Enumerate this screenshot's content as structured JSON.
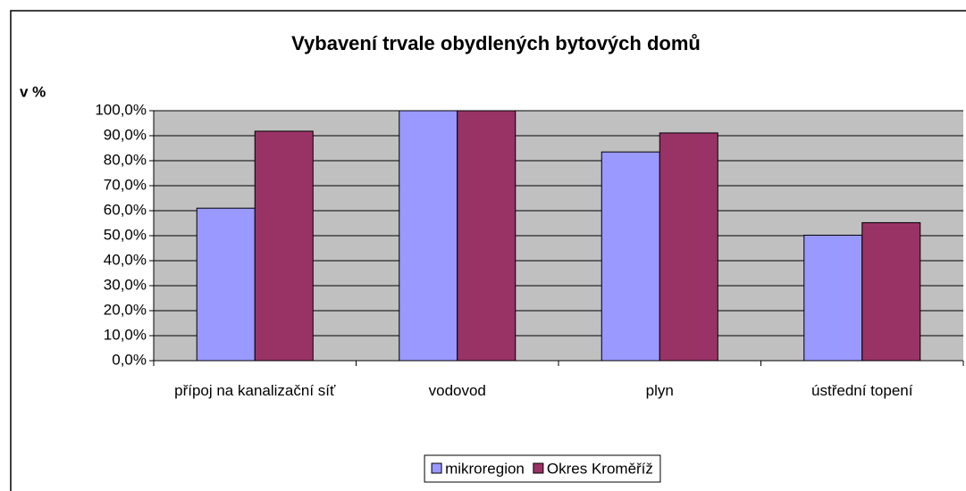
{
  "chart_data": {
    "type": "bar",
    "title": "Vybavení trvale obydlených bytových domů",
    "y_label": "v %",
    "categories": [
      "přípoj na kanalizační síť",
      "vodovod",
      "plyn",
      "ústřední topení"
    ],
    "series": [
      {
        "name": "mikroregion",
        "color": "#9999ff",
        "values": [
          61.0,
          100,
          83.5,
          50.2
        ]
      },
      {
        "name": "Okres Kroměříž",
        "color": "#993366",
        "values": [
          91.8,
          100,
          91.1,
          55.2
        ]
      }
    ],
    "ylim": [
      0,
      100
    ],
    "yticks": [
      {
        "value": 0,
        "label": "0,0%"
      },
      {
        "value": 10,
        "label": "10,0%"
      },
      {
        "value": 20,
        "label": "20,0%"
      },
      {
        "value": 30,
        "label": "30,0%"
      },
      {
        "value": 40,
        "label": "40,0%"
      },
      {
        "value": 50,
        "label": "50,0%"
      },
      {
        "value": 60,
        "label": "60,0%"
      },
      {
        "value": 70,
        "label": "70,0%"
      },
      {
        "value": 80,
        "label": "80,0%"
      },
      {
        "value": 90,
        "label": "90,0%"
      },
      {
        "value": 100,
        "label": "100,0%"
      }
    ],
    "grid": true,
    "legend": "bottom"
  }
}
